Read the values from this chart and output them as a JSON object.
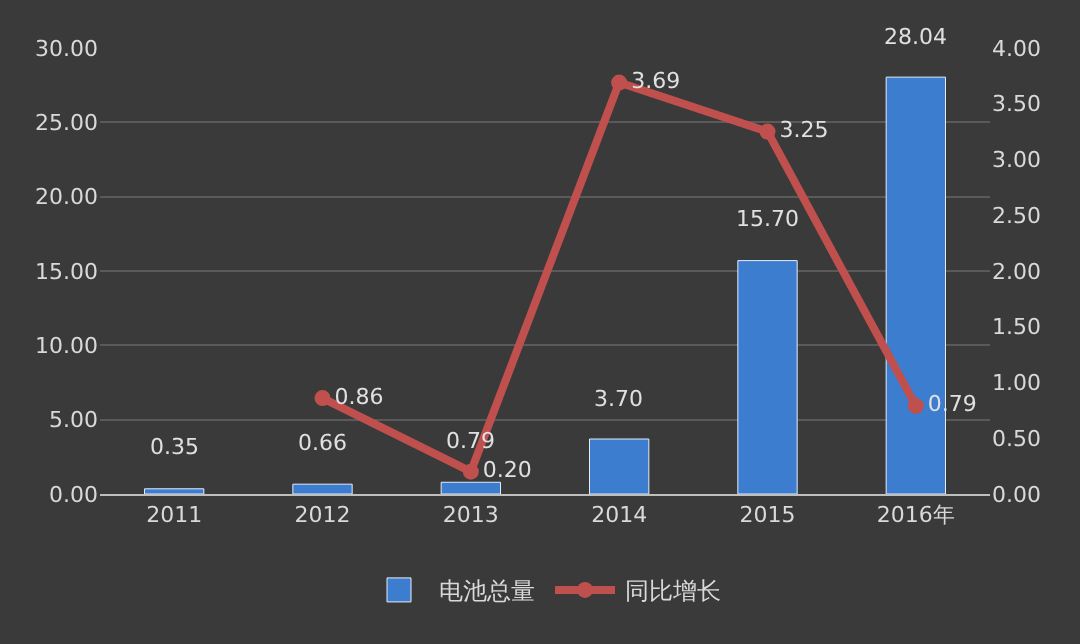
{
  "chart_data": {
    "type": "bar",
    "categories": [
      "2011",
      "2012",
      "2013",
      "2014",
      "2015",
      "2016年"
    ],
    "series": [
      {
        "name": "电池总量",
        "color": "#3c7dd0",
        "values": [
          0.35,
          0.66,
          0.79,
          3.7,
          15.7,
          28.04
        ],
        "value_labels": [
          "0.35",
          "0.66",
          "0.79",
          "3.70",
          "15.70",
          "28.04"
        ]
      },
      {
        "name": "同比增长",
        "type": "line",
        "axis": "y2",
        "color": "#c0504d",
        "values": [
          null,
          0.86,
          0.2,
          3.69,
          3.25,
          0.79
        ],
        "value_labels": [
          null,
          "0.86",
          "0.20",
          "3.69",
          "3.25",
          "0.79"
        ]
      }
    ],
    "ylim": [
      0,
      30
    ],
    "yticks": [
      {
        "value": 0,
        "label": "0.00"
      },
      {
        "value": 5,
        "label": "5.00"
      },
      {
        "value": 10,
        "label": "10.00"
      },
      {
        "value": 15,
        "label": "15.00"
      },
      {
        "value": 20,
        "label": "20.00"
      },
      {
        "value": 25,
        "label": "25.00"
      },
      {
        "value": 30,
        "label": "30.00"
      }
    ],
    "y2lim": [
      0,
      4
    ],
    "y2ticks": [
      {
        "value": 0,
        "label": "0.00"
      },
      {
        "value": 0.5,
        "label": "0.50"
      },
      {
        "value": 1,
        "label": "1.00"
      },
      {
        "value": 1.5,
        "label": "1.50"
      },
      {
        "value": 2,
        "label": "2.00"
      },
      {
        "value": 2.5,
        "label": "2.50"
      },
      {
        "value": 3,
        "label": "3.00"
      },
      {
        "value": 3.5,
        "label": "3.50"
      },
      {
        "value": 4,
        "label": "4.00"
      }
    ],
    "grid": "y",
    "legend": "bottom",
    "marker": "circle",
    "line_style": "solid"
  }
}
